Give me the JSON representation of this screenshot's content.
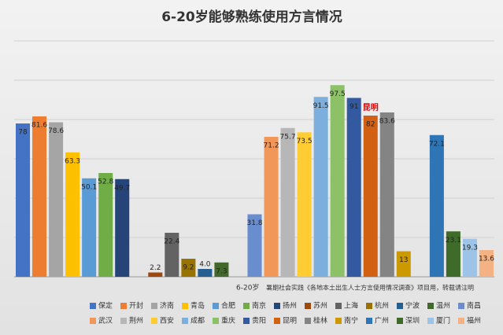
{
  "chart_data": {
    "type": "bar",
    "title": "6-20岁能够熟练使用方言情况",
    "x_label": "6-20岁",
    "source": "暑期社会实践《各地本土出生人士方言使用情况调查》项目用，转载请注明",
    "annotation": "昆明",
    "categories": [
      "保定",
      "开封",
      "济南",
      "青岛",
      "合肥",
      "南京",
      "扬州",
      "苏州",
      "上海",
      "杭州",
      "宁波",
      "温州",
      "南昌",
      "武汉",
      "荆州",
      "西安",
      "成都",
      "重庆",
      "贵阳",
      "昆明",
      "桂林",
      "南宁",
      "广州",
      "深圳",
      "厦门",
      "福州"
    ],
    "values": [
      78,
      81.6,
      78.6,
      63.3,
      50.1,
      52.8,
      49.7,
      2.2,
      22.4,
      9.2,
      4,
      7.3,
      31.8,
      71.2,
      75.7,
      73.5,
      91.5,
      97.5,
      91,
      82,
      83.6,
      13,
      72.1,
      23.1,
      19.3,
      13.6
    ],
    "value_labels": [
      "78",
      "81.6",
      "78.6",
      "63.3",
      "50.1",
      "52.8",
      "49.7",
      "2.2",
      "22.4",
      "9.2",
      "4.0",
      "7.3",
      "31.8",
      "71.2",
      "75.7",
      "73.5",
      "91.5",
      "97.5",
      "91",
      "82",
      "83.6",
      "13",
      "72.1",
      "23.1",
      "19.3",
      "13.6"
    ],
    "colors": [
      "#4472c4",
      "#ed7d31",
      "#a5a5a5",
      "#ffc000",
      "#5b9bd5",
      "#70ad47",
      "#264478",
      "#9e480e",
      "#636363",
      "#997300",
      "#255e91",
      "#43682b",
      "#698ed0",
      "#f1975a",
      "#b7b7b7",
      "#ffcd33",
      "#7cafdd",
      "#8cc168",
      "#335aa1",
      "#d26012",
      "#848484",
      "#cc9a00",
      "#2e75b6",
      "#3f6b2a",
      "#9dc3e6",
      "#f4b183"
    ],
    "ylim": [
      0,
      120
    ],
    "grid": true
  }
}
